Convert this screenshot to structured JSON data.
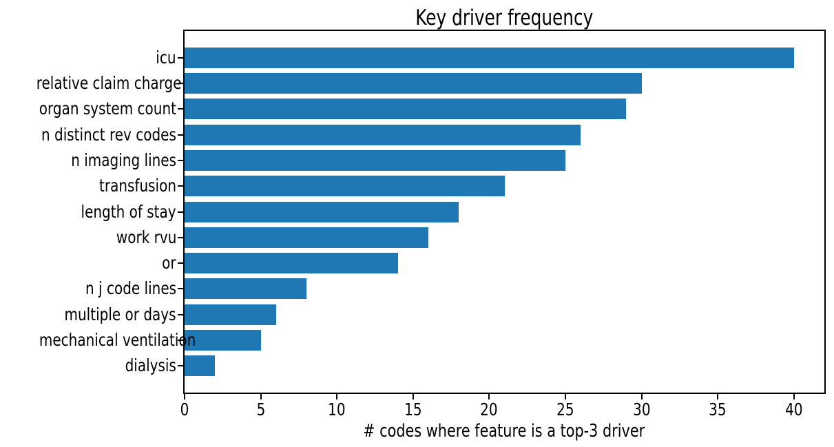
{
  "chart_data": {
    "type": "bar",
    "orientation": "horizontal",
    "title": "Key driver frequency",
    "xlabel": "# codes where feature is a top-3 driver",
    "ylabel": "",
    "categories": [
      "icu",
      "relative claim charge",
      "organ system count",
      "n distinct rev codes",
      "n imaging lines",
      "transfusion",
      "length of stay",
      "work rvu",
      "or",
      "n j code lines",
      "multiple or days",
      "mechanical ventilation",
      "dialysis"
    ],
    "values": [
      40,
      30,
      29,
      26,
      25,
      21,
      18,
      16,
      14,
      8,
      6,
      5,
      2
    ],
    "xlim": [
      0,
      42
    ],
    "xticks": [
      0,
      5,
      10,
      15,
      20,
      25,
      30,
      35,
      40
    ],
    "bar_color": "#1f77b4",
    "text_color": "#000000",
    "grid": false,
    "legend": null
  }
}
